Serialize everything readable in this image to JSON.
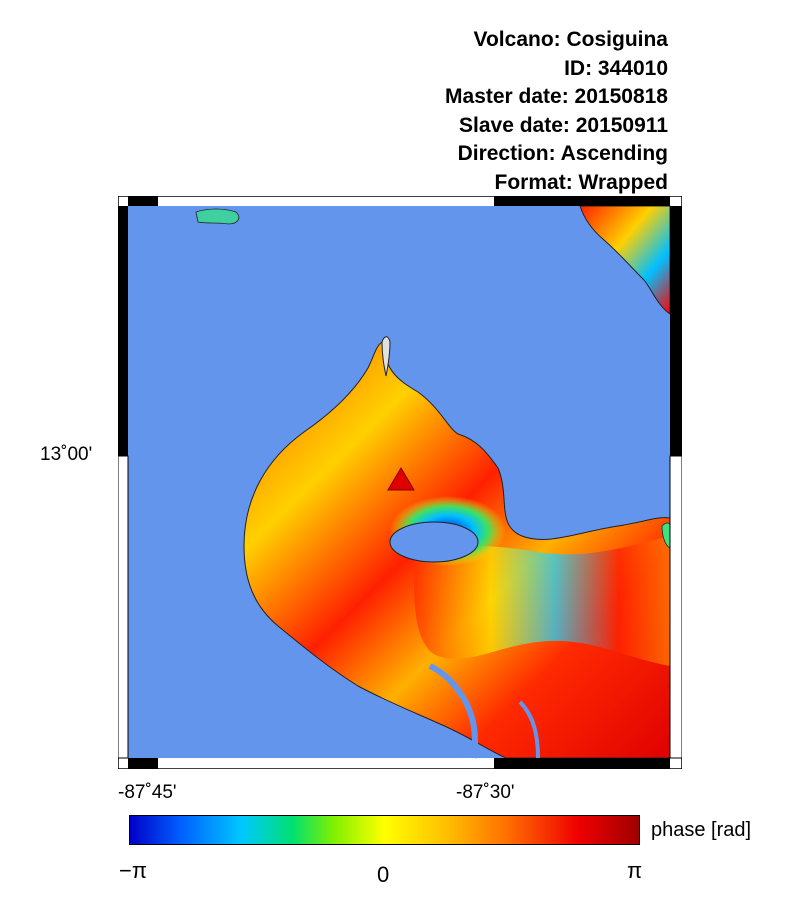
{
  "header": {
    "volcano": "Volcano: Cosiguina",
    "id": "ID: 344010",
    "master_date": "Master date: 20150818",
    "slave_date": "Slave date: 20150911",
    "direction": "Direction: Ascending",
    "format": "Format: Wrapped"
  },
  "map": {
    "lat_label": "13˚00'",
    "lon_labels": [
      "-87˚45'",
      "-87˚30'"
    ],
    "volcano_marker": "red triangle",
    "water_color": "#6495ed"
  },
  "colorbar": {
    "label": "phase [rad]",
    "ticks": [
      "−π",
      "0",
      "π"
    ],
    "colors": [
      "#0000c8",
      "#00c8ff",
      "#80f000",
      "#ffff00",
      "#ff7000",
      "#a00000"
    ]
  }
}
